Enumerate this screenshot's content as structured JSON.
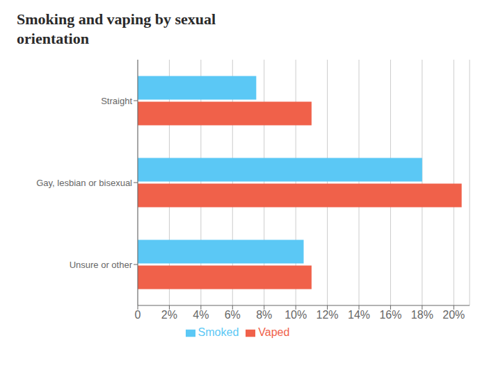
{
  "chart_data": {
    "type": "bar",
    "orientation": "horizontal",
    "title": "Smoking and vaping by sexual\norientation",
    "categories": [
      "Unsure or other",
      "Gay, lesbian or bisexual",
      "Straight"
    ],
    "series": [
      {
        "name": "Smoked",
        "color": "#5bc8f5",
        "values": [
          10.5,
          18.0,
          7.5
        ]
      },
      {
        "name": "Vaped",
        "color": "#f0614a",
        "values": [
          11.0,
          20.5,
          11.0
        ]
      }
    ],
    "xlim": [
      0,
      21
    ],
    "xticks": [
      0,
      {
        "value": 2,
        "label": "2%"
      },
      {
        "value": 4,
        "label": "4%"
      },
      {
        "value": 6,
        "label": "6%"
      },
      {
        "value": 8,
        "label": "8%"
      },
      {
        "value": 10,
        "label": "10%"
      },
      {
        "value": 12,
        "label": "12%"
      },
      {
        "value": 14,
        "label": "14%"
      },
      {
        "value": 16,
        "label": "16%"
      },
      {
        "value": 18,
        "label": "18%"
      },
      {
        "value": 20,
        "label": "20%"
      }
    ],
    "grid": true,
    "legend": "bottom"
  }
}
